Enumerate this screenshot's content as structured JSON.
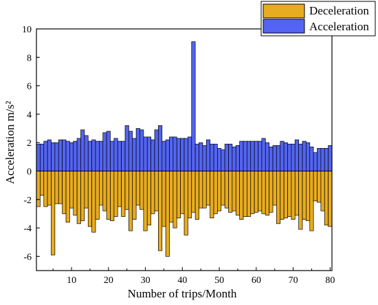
{
  "chart_data": {
    "type": "bar",
    "xlabel": "Number of trips/Month",
    "ylabel": "Acceleration m/s²",
    "xlim": [
      0.5,
      80.5
    ],
    "ylim": [
      -7,
      10
    ],
    "xticks": [
      10,
      20,
      30,
      40,
      50,
      60,
      70,
      80
    ],
    "yticks": [
      -6,
      -4,
      -2,
      0,
      2,
      4,
      6,
      8,
      10
    ],
    "legend_position": "top-right",
    "x": [
      1,
      2,
      3,
      4,
      5,
      6,
      7,
      8,
      9,
      10,
      11,
      12,
      13,
      14,
      15,
      16,
      17,
      18,
      19,
      20,
      21,
      22,
      23,
      24,
      25,
      26,
      27,
      28,
      29,
      30,
      31,
      32,
      33,
      34,
      35,
      36,
      37,
      38,
      39,
      40,
      41,
      42,
      43,
      44,
      45,
      46,
      47,
      48,
      49,
      50,
      51,
      52,
      53,
      54,
      55,
      56,
      57,
      58,
      59,
      60,
      61,
      62,
      63,
      64,
      65,
      66,
      67,
      68,
      69,
      70,
      71,
      72,
      73,
      74,
      75,
      76,
      77,
      78,
      79,
      80
    ],
    "series": [
      {
        "name": "Deceleration",
        "color": "#E8AC20",
        "values": [
          -2.5,
          -1.7,
          -2.5,
          -2.4,
          -5.9,
          -2.3,
          -2.3,
          -3.0,
          -3.6,
          -2.6,
          -3.1,
          -3.7,
          -3.5,
          -2.6,
          -3.9,
          -4.3,
          -3.4,
          -2.4,
          -2.8,
          -3.4,
          -3.5,
          -3.2,
          -2.5,
          -3.2,
          -2.7,
          -4.2,
          -3.4,
          -2.4,
          -2.7,
          -4.2,
          -3.8,
          -3.0,
          -2.8,
          -5.6,
          -3.9,
          -6.0,
          -3.6,
          -4.0,
          -3.3,
          -3.0,
          -4.5,
          -3.3,
          -2.9,
          -3.4,
          -2.6,
          -2.6,
          -2.4,
          -3.3,
          -3.0,
          -2.8,
          -2.4,
          -2.6,
          -2.9,
          -2.8,
          -3.1,
          -3.4,
          -3.2,
          -3.2,
          -3.0,
          -2.9,
          -2.8,
          -3.0,
          -3.1,
          -2.9,
          -2.4,
          -3.7,
          -3.4,
          -3.3,
          -3.2,
          -3.4,
          -3.1,
          -4.1,
          -3.4,
          -3.5,
          -4.2,
          -2.1,
          -2.2,
          -2.8,
          -3.8,
          -3.9
        ]
      },
      {
        "name": "Acceleration",
        "color": "#5264F0",
        "values": [
          1.9,
          1.9,
          2.1,
          2.2,
          2.0,
          2.0,
          2.2,
          2.2,
          2.1,
          2.0,
          2.1,
          2.3,
          2.9,
          2.5,
          2.1,
          2.2,
          2.1,
          2.1,
          2.7,
          2.8,
          2.1,
          2.3,
          2.1,
          2.1,
          3.2,
          2.8,
          2.3,
          3.0,
          2.9,
          2.4,
          2.4,
          2.2,
          2.9,
          3.2,
          2.1,
          2.2,
          2.4,
          2.4,
          2.3,
          2.3,
          2.3,
          2.4,
          9.1,
          1.9,
          2.0,
          1.8,
          2.2,
          1.9,
          1.9,
          1.6,
          1.5,
          1.9,
          1.9,
          1.7,
          1.8,
          2.1,
          2.1,
          2.1,
          2.1,
          2.1,
          2.1,
          2.3,
          2.0,
          1.7,
          1.8,
          1.8,
          2.1,
          2.0,
          1.9,
          1.9,
          2.2,
          1.9,
          2.1,
          2.0,
          1.7,
          1.3,
          1.6,
          1.6,
          1.6,
          1.8
        ]
      }
    ]
  }
}
